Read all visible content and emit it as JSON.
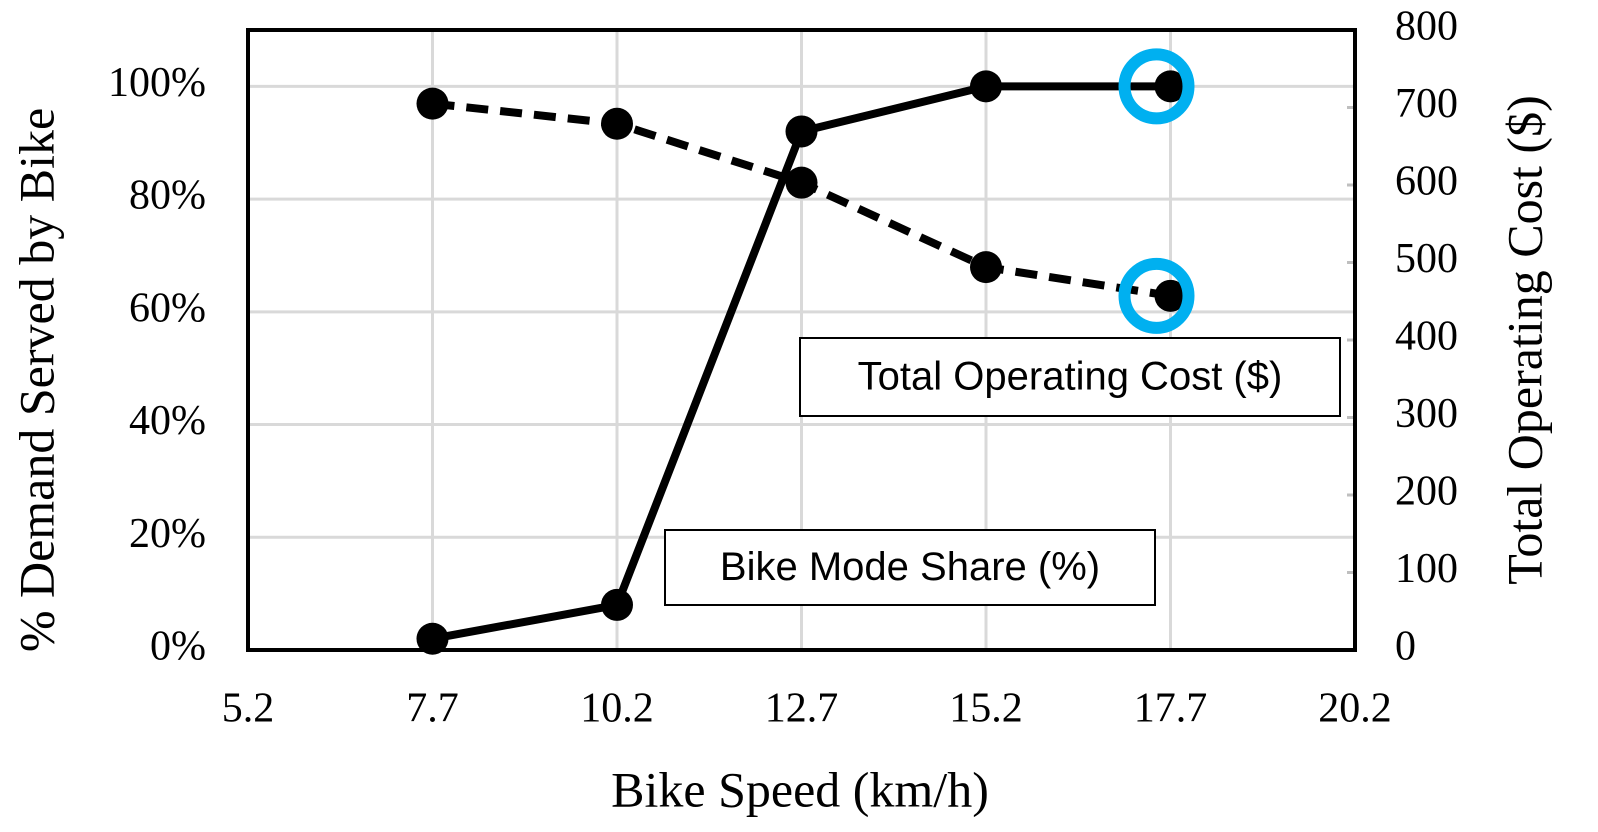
{
  "chart_data": {
    "type": "line",
    "x_label": "Bike Speed (km/h)",
    "y_label": "% Demand Served by Bike",
    "y2_label": "Total Operating Cost ($)",
    "x": [
      7.7,
      10.2,
      12.7,
      15.2,
      17.7
    ],
    "series": [
      {
        "name": "Bike Mode Share (%)",
        "color": "#000000",
        "line_style": "solid",
        "values": [
          2,
          8,
          92,
          100,
          100
        ]
      },
      {
        "name": "Total Operating Cost ($)",
        "color": "#000000",
        "line_style": "dashed",
        "axis": "y2",
        "values": [
          705,
          679,
          603,
          494,
          457
        ]
      }
    ],
    "highlight": {
      "index": 4,
      "color": "#00b0f0"
    },
    "xlim": [
      5.2,
      20.2
    ],
    "xticks": [
      5.2,
      7.7,
      10.2,
      12.7,
      15.2,
      17.7,
      20.2
    ],
    "ylim": [
      0,
      110
    ],
    "yticks": [
      {
        "value": 0,
        "label": "0%"
      },
      {
        "value": 20,
        "label": "20%"
      },
      {
        "value": 40,
        "label": "40%"
      },
      {
        "value": 60,
        "label": "60%"
      },
      {
        "value": 80,
        "label": "80%"
      },
      {
        "value": 100,
        "label": "100%"
      }
    ],
    "y2lim": [
      0,
      800
    ],
    "y2ticks": [
      0,
      100,
      200,
      300,
      400,
      500,
      600,
      700,
      800
    ],
    "grid": true
  }
}
